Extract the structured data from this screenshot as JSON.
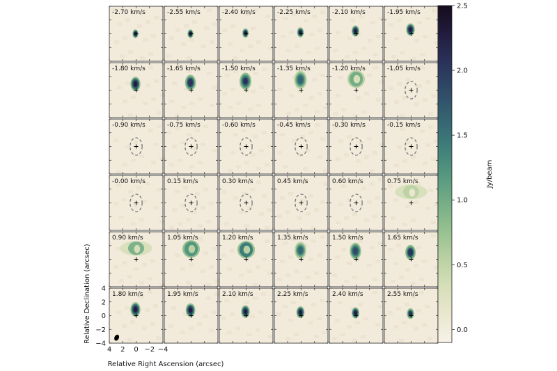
{
  "chart_data": {
    "type": "heatmap",
    "title": "",
    "panel_layout": {
      "rows": 6,
      "cols": 6
    },
    "channel_unit": "km/s",
    "channels": [
      {
        "velocity": -2.7,
        "label": "-2.70 km/s",
        "peak": 2.2,
        "emission": "compact",
        "sy": 0.0
      },
      {
        "velocity": -2.55,
        "label": "-2.55 km/s",
        "peak": 2.2,
        "emission": "compact",
        "sy": 0.0
      },
      {
        "velocity": -2.4,
        "label": "-2.40 km/s",
        "peak": 2.2,
        "emission": "compact",
        "sy": 0.1
      },
      {
        "velocity": -2.25,
        "label": "-2.25 km/s",
        "peak": 2.3,
        "emission": "compact",
        "sy": 0.2
      },
      {
        "velocity": -2.1,
        "label": "-2.10 km/s",
        "peak": 2.3,
        "emission": "compact",
        "sy": 0.4
      },
      {
        "velocity": -1.95,
        "label": "-1.95 km/s",
        "peak": 2.3,
        "emission": "compact",
        "sy": 0.6
      },
      {
        "velocity": -1.8,
        "label": "-1.80 km/s",
        "peak": 2.2,
        "emission": "compact",
        "sy": 0.9
      },
      {
        "velocity": -1.65,
        "label": "-1.65 km/s",
        "peak": 2.1,
        "emission": "compact",
        "sy": 1.1
      },
      {
        "velocity": -1.5,
        "label": "-1.50 km/s",
        "peak": 2.0,
        "emission": "compact",
        "sy": 1.3
      },
      {
        "velocity": -1.35,
        "label": "-1.35 km/s",
        "peak": 1.6,
        "emission": "compact",
        "sy": 1.5
      },
      {
        "velocity": -1.2,
        "label": "-1.20 km/s",
        "peak": 0.9,
        "emission": "ring",
        "sy": 1.6
      },
      {
        "velocity": -1.05,
        "label": "-1.05 km/s",
        "peak": 0.0,
        "emission": "none",
        "sy": 0.0
      },
      {
        "velocity": -0.9,
        "label": "-0.90 km/s",
        "peak": 0.0,
        "emission": "none",
        "sy": 0.0
      },
      {
        "velocity": -0.75,
        "label": "-0.75 km/s",
        "peak": 0.0,
        "emission": "none",
        "sy": 0.0
      },
      {
        "velocity": -0.6,
        "label": "-0.60 km/s",
        "peak": 0.0,
        "emission": "none",
        "sy": 0.0
      },
      {
        "velocity": -0.45,
        "label": "-0.45 km/s",
        "peak": 0.0,
        "emission": "none",
        "sy": 0.0
      },
      {
        "velocity": -0.3,
        "label": "-0.30 km/s",
        "peak": 0.0,
        "emission": "none",
        "sy": 0.0
      },
      {
        "velocity": -0.15,
        "label": "-0.15 km/s",
        "peak": 0.0,
        "emission": "none",
        "sy": 0.0
      },
      {
        "velocity": 0.0,
        "label": "-0.00 km/s",
        "peak": 0.0,
        "emission": "none",
        "sy": 0.0
      },
      {
        "velocity": 0.15,
        "label": "0.15 km/s",
        "peak": 0.0,
        "emission": "none",
        "sy": 0.0
      },
      {
        "velocity": 0.3,
        "label": "0.30 km/s",
        "peak": 0.0,
        "emission": "none",
        "sy": 0.0
      },
      {
        "velocity": 0.45,
        "label": "0.45 km/s",
        "peak": 0.0,
        "emission": "none",
        "sy": 0.0
      },
      {
        "velocity": 0.6,
        "label": "0.60 km/s",
        "peak": 0.0,
        "emission": "none",
        "sy": 0.0
      },
      {
        "velocity": 0.75,
        "label": "0.75 km/s",
        "peak": 0.5,
        "emission": "wings",
        "sy": 1.6
      },
      {
        "velocity": 0.9,
        "label": "0.90 km/s",
        "peak": 0.9,
        "emission": "wings",
        "sy": 1.6
      },
      {
        "velocity": 1.05,
        "label": "1.05 km/s",
        "peak": 1.2,
        "emission": "ring",
        "sy": 1.5
      },
      {
        "velocity": 1.2,
        "label": "1.20 km/s",
        "peak": 1.4,
        "emission": "ring",
        "sy": 1.4
      },
      {
        "velocity": 1.35,
        "label": "1.35 km/s",
        "peak": 1.7,
        "emission": "compact",
        "sy": 1.3
      },
      {
        "velocity": 1.5,
        "label": "1.50 km/s",
        "peak": 1.9,
        "emission": "compact",
        "sy": 1.2
      },
      {
        "velocity": 1.65,
        "label": "1.65 km/s",
        "peak": 2.1,
        "emission": "compact",
        "sy": 1.0
      },
      {
        "velocity": 1.8,
        "label": "1.80 km/s",
        "peak": 2.2,
        "emission": "compact",
        "sy": 0.9
      },
      {
        "velocity": 1.95,
        "label": "1.95 km/s",
        "peak": 2.2,
        "emission": "compact",
        "sy": 0.8
      },
      {
        "velocity": 2.1,
        "label": "2.10 km/s",
        "peak": 2.2,
        "emission": "compact",
        "sy": 0.6
      },
      {
        "velocity": 2.25,
        "label": "2.25 km/s",
        "peak": 2.2,
        "emission": "compact",
        "sy": 0.5
      },
      {
        "velocity": 2.4,
        "label": "2.40 km/s",
        "peak": 2.2,
        "emission": "compact",
        "sy": 0.4
      },
      {
        "velocity": 2.55,
        "label": "2.55 km/s",
        "peak": 2.1,
        "emission": "compact",
        "sy": 0.3
      }
    ],
    "xlabel": "Relative Right Ascension (arcsec)",
    "ylabel": "Relative Declination (arcsec)",
    "xlim": [
      4,
      -4
    ],
    "ylim": [
      -4,
      4
    ],
    "x_ticks": [
      "4",
      "2",
      "0",
      "−2",
      "−4"
    ],
    "y_ticks": [
      "4",
      "2",
      "0",
      "−2",
      "−4"
    ],
    "colorbar": {
      "label": "Jy/beam",
      "range": [
        -0.1,
        2.5
      ],
      "ticks": [
        "0.0",
        "0.5",
        "1.0",
        "1.5",
        "2.0",
        "2.5"
      ],
      "tick_values": [
        0.0,
        0.5,
        1.0,
        1.5,
        2.0,
        2.5
      ],
      "colors": [
        "#f7f2e7",
        "#eae7cf",
        "#d6dfb8",
        "#b9d1a3",
        "#96c08f",
        "#74ad86",
        "#54977f",
        "#3e7d7a",
        "#356370",
        "#2f4a67",
        "#2a3259",
        "#221c3d",
        "#150c1c"
      ]
    },
    "background_color": "#f2ebdc",
    "source_marker": "+",
    "beam": "filled ellipse, lower-left of bottom-left panel",
    "contour": "dashed grey ellipse around source in channels -1.05 to 0.60 km/s"
  }
}
